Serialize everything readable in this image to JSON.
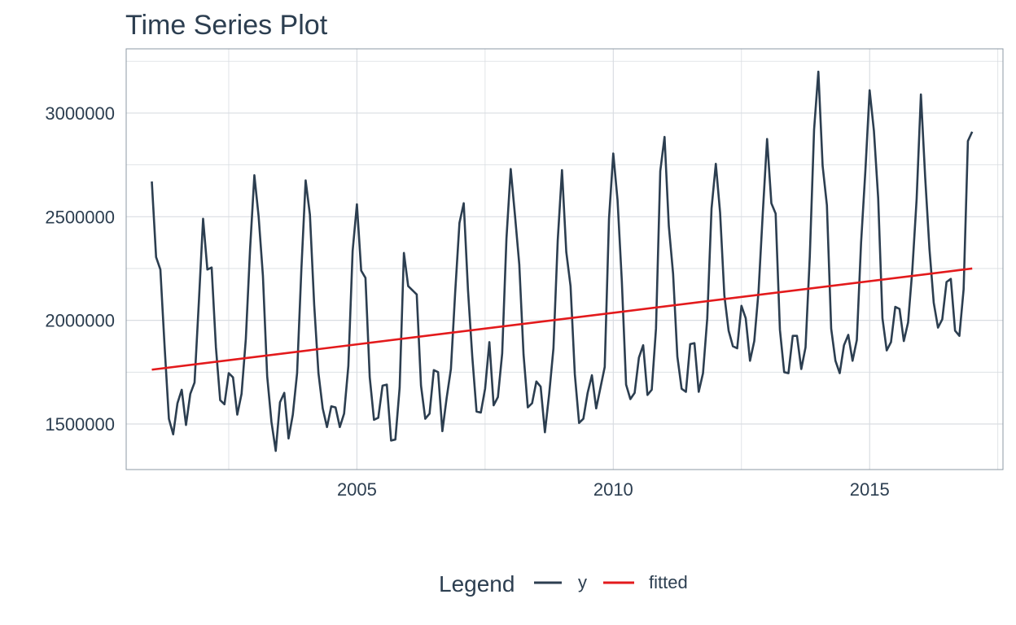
{
  "chart_data": {
    "type": "line",
    "title": "Time Series Plot",
    "xlabel": "",
    "ylabel": "",
    "xlim": [
      2000.5,
      2017.6
    ],
    "ylim": [
      1280000,
      3310000
    ],
    "x_ticks": [
      2005,
      2010,
      2015
    ],
    "y_ticks": [
      1500000,
      2000000,
      2500000,
      3000000
    ],
    "grid": true,
    "legend_position": "bottom",
    "legend_title": "Legend",
    "colors": {
      "y": "#2c3e50",
      "fitted": "#e31a1c"
    },
    "series": [
      {
        "name": "y",
        "x_start": 2001.0,
        "x_step": 0.08333,
        "values": [
          2670000,
          2305000,
          2245000,
          1870000,
          1525000,
          1450000,
          1600000,
          1665000,
          1495000,
          1645000,
          1700000,
          2085000,
          2490000,
          2245000,
          2255000,
          1870000,
          1615000,
          1595000,
          1745000,
          1725000,
          1545000,
          1645000,
          1910000,
          2345000,
          2700000,
          2500000,
          2215000,
          1730000,
          1510000,
          1370000,
          1605000,
          1650000,
          1430000,
          1545000,
          1745000,
          2245000,
          2675000,
          2510000,
          2075000,
          1745000,
          1575000,
          1485000,
          1585000,
          1580000,
          1485000,
          1550000,
          1780000,
          2335000,
          2560000,
          2240000,
          2205000,
          1725000,
          1520000,
          1530000,
          1685000,
          1690000,
          1420000,
          1425000,
          1675000,
          2325000,
          2165000,
          2145000,
          2125000,
          1685000,
          1525000,
          1550000,
          1760000,
          1750000,
          1465000,
          1625000,
          1765000,
          2135000,
          2470000,
          2565000,
          2145000,
          1825000,
          1560000,
          1555000,
          1670000,
          1895000,
          1590000,
          1630000,
          1840000,
          2395000,
          2730000,
          2505000,
          2270000,
          1835000,
          1580000,
          1600000,
          1705000,
          1680000,
          1460000,
          1645000,
          1865000,
          2385000,
          2725000,
          2330000,
          2165000,
          1740000,
          1505000,
          1525000,
          1650000,
          1735000,
          1575000,
          1675000,
          1775000,
          2490000,
          2805000,
          2580000,
          2190000,
          1690000,
          1620000,
          1650000,
          1820000,
          1880000,
          1640000,
          1665000,
          1960000,
          2720000,
          2885000,
          2455000,
          2225000,
          1825000,
          1670000,
          1655000,
          1885000,
          1890000,
          1655000,
          1745000,
          2010000,
          2540000,
          2755000,
          2520000,
          2120000,
          1950000,
          1875000,
          1865000,
          2070000,
          2010000,
          1805000,
          1900000,
          2140000,
          2520000,
          2875000,
          2565000,
          2515000,
          1955000,
          1750000,
          1745000,
          1925000,
          1925000,
          1765000,
          1870000,
          2310000,
          2920000,
          3200000,
          2745000,
          2555000,
          1960000,
          1805000,
          1745000,
          1880000,
          1930000,
          1805000,
          1905000,
          2375000,
          2720000,
          3110000,
          2915000,
          2590000,
          2010000,
          1855000,
          1895000,
          2065000,
          2055000,
          1900000,
          1990000,
          2245000,
          2585000,
          3090000,
          2690000,
          2345000,
          2085000,
          1965000,
          2005000,
          2185000,
          2200000,
          1950000,
          1925000,
          2150000,
          2865000,
          2910000
        ]
      },
      {
        "name": "fitted",
        "x": [
          2001.0,
          2017.0
        ],
        "values": [
          1762000,
          2250000
        ]
      }
    ]
  }
}
